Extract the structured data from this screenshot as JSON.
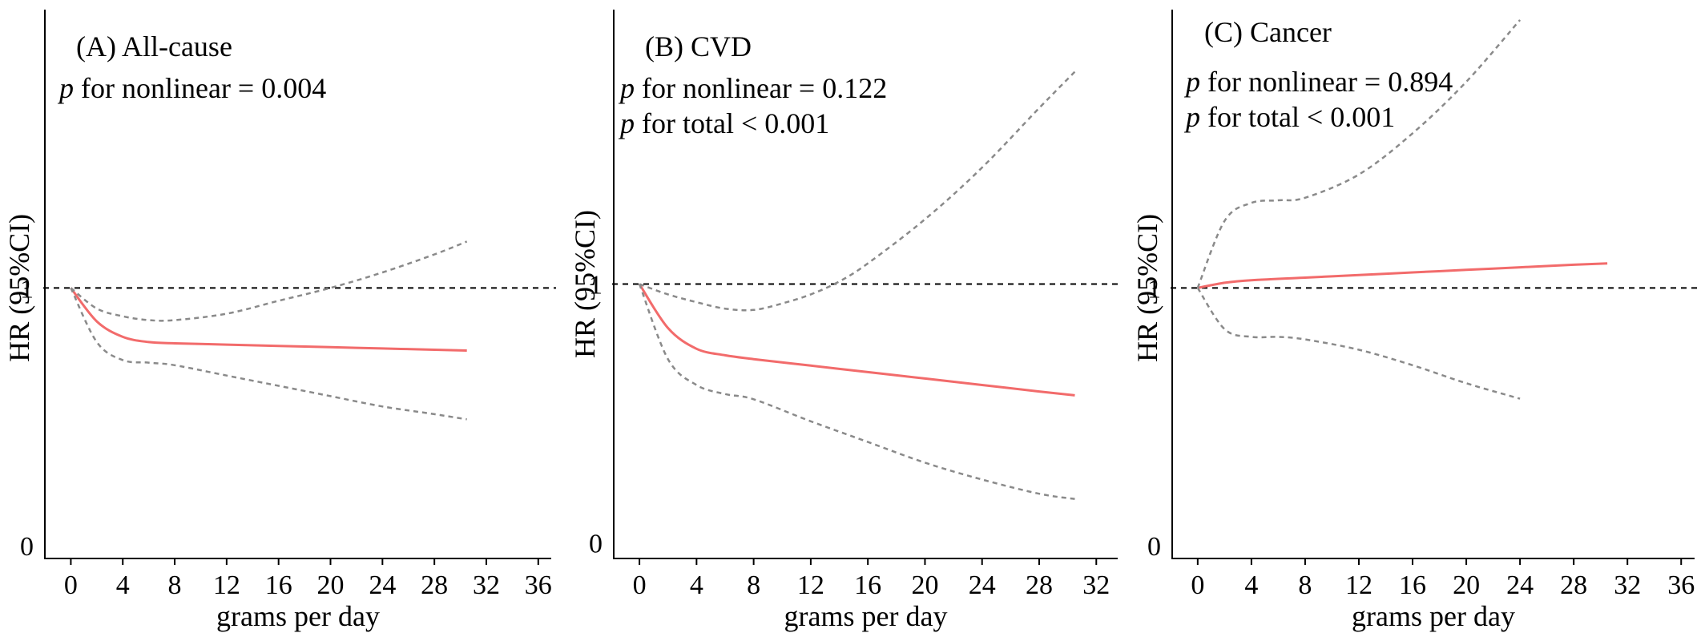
{
  "figure": {
    "ylabel": "HR (95%CI)",
    "xlabel": "grams per day",
    "colors": {
      "hr": "#f26b6b",
      "ci": "#8a8a8a",
      "reference": "#000000"
    }
  },
  "chart_data": [
    {
      "type": "line",
      "title": "(A) All-cause",
      "stats": [
        {
          "p": "p",
          "text": "for nonlinear = 0.004"
        }
      ],
      "xlabel": "grams per day",
      "ylabel": "HR (95%CI)",
      "xticks": [
        0,
        4,
        8,
        12,
        16,
        20,
        24,
        28,
        32,
        36
      ],
      "yticks": [
        0,
        1
      ],
      "xlim": [
        -2,
        37
      ],
      "ylim": [
        -0.05,
        2.08
      ],
      "reference_hr": 1,
      "series": [
        {
          "role": "hr",
          "x": [
            0,
            2,
            4,
            6,
            8,
            12,
            16,
            20,
            24,
            28,
            30.5
          ],
          "values": [
            1.0,
            0.87,
            0.81,
            0.79,
            0.785,
            0.78,
            0.775,
            0.77,
            0.765,
            0.76,
            0.757
          ]
        },
        {
          "role": "ci-upper",
          "x": [
            0,
            2,
            4,
            6,
            8,
            12,
            16,
            20,
            24,
            28,
            30.5
          ],
          "values": [
            1.0,
            0.92,
            0.89,
            0.875,
            0.875,
            0.9,
            0.95,
            1.0,
            1.06,
            1.13,
            1.18
          ]
        },
        {
          "role": "ci-lower",
          "x": [
            0,
            2,
            4,
            6,
            8,
            12,
            16,
            20,
            24,
            28,
            30.5
          ],
          "values": [
            1.0,
            0.79,
            0.72,
            0.71,
            0.7,
            0.66,
            0.62,
            0.58,
            0.54,
            0.51,
            0.49
          ]
        }
      ]
    },
    {
      "type": "line",
      "title": "(B) CVD",
      "stats": [
        {
          "p": "p",
          "text": "for nonlinear = 0.122"
        },
        {
          "p": "p",
          "text": "for total < 0.001"
        }
      ],
      "xlabel": "grams per day",
      "ylabel": "HR (95%CI)",
      "xticks": [
        0,
        4,
        8,
        12,
        16,
        20,
        24,
        28,
        32
      ],
      "yticks": [
        0,
        1
      ],
      "xlim": [
        -1.8,
        33.5
      ],
      "ylim": [
        -0.06,
        2.06
      ],
      "reference_hr": 1,
      "series": [
        {
          "role": "hr",
          "x": [
            0,
            2,
            4,
            6,
            8,
            12,
            16,
            20,
            24,
            28,
            30.5
          ],
          "values": [
            1.0,
            0.83,
            0.75,
            0.725,
            0.71,
            0.685,
            0.66,
            0.635,
            0.61,
            0.585,
            0.57
          ]
        },
        {
          "role": "ci-upper",
          "x": [
            0,
            2,
            4,
            6,
            8,
            10,
            12,
            14,
            16,
            20,
            24,
            28,
            30.5
          ],
          "values": [
            1.0,
            0.96,
            0.93,
            0.905,
            0.9,
            0.925,
            0.96,
            1.01,
            1.08,
            1.25,
            1.45,
            1.68,
            1.82
          ]
        },
        {
          "role": "ci-lower",
          "x": [
            0,
            2,
            4,
            6,
            8,
            12,
            16,
            20,
            24,
            28,
            30.5
          ],
          "values": [
            1.0,
            0.71,
            0.61,
            0.575,
            0.555,
            0.47,
            0.39,
            0.31,
            0.245,
            0.19,
            0.17
          ]
        }
      ]
    },
    {
      "type": "line",
      "title": "(C) Cancer",
      "stats": [
        {
          "p": "p",
          "text": "for nonlinear = 0.894"
        },
        {
          "p": "p",
          "text": "for total < 0.001"
        }
      ],
      "xlabel": "grams per day",
      "ylabel": "HR (95%CI)",
      "xticks": [
        0,
        4,
        8,
        12,
        16,
        20,
        24,
        28,
        32,
        36
      ],
      "yticks": [
        0,
        1
      ],
      "xlim": [
        -1.9,
        37
      ],
      "ylim": [
        -0.05,
        2.08
      ],
      "reference_hr": 1,
      "series": [
        {
          "role": "hr",
          "x": [
            0,
            2,
            4,
            8,
            12,
            16,
            20,
            24,
            28,
            30.5
          ],
          "values": [
            1.0,
            1.02,
            1.03,
            1.04,
            1.05,
            1.06,
            1.07,
            1.08,
            1.09,
            1.095
          ]
        },
        {
          "role": "ci-upper",
          "x": [
            0,
            2,
            4,
            6,
            8,
            12,
            16,
            20,
            24
          ],
          "values": [
            1.0,
            1.26,
            1.33,
            1.34,
            1.35,
            1.44,
            1.6,
            1.8,
            2.04
          ]
        },
        {
          "role": "ci-lower",
          "x": [
            0,
            2,
            4,
            6,
            8,
            12,
            16,
            20,
            24
          ],
          "values": [
            1.0,
            0.84,
            0.81,
            0.81,
            0.8,
            0.76,
            0.7,
            0.63,
            0.57
          ]
        }
      ]
    }
  ]
}
